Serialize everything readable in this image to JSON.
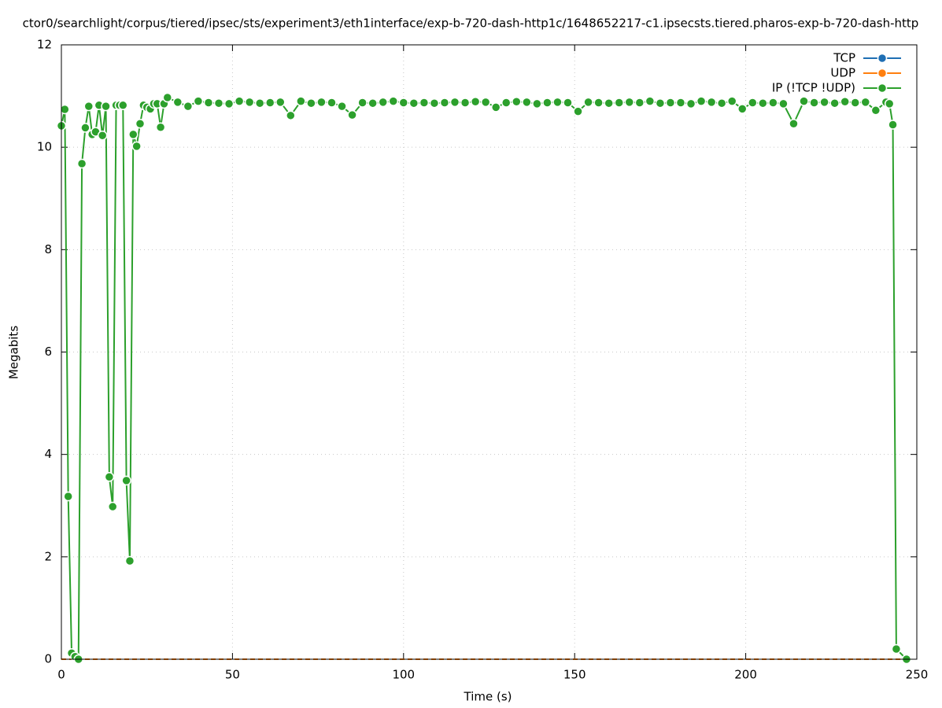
{
  "chart_data": {
    "type": "line",
    "title": "ctor0/searchlight/corpus/tiered/ipsec/sts/experiment3/eth1interface/exp-b-720-dash-http1c/1648652217-c1.ipsecsts.tiered.pharos-exp-b-720-dash-http",
    "x_label": "Time (s)",
    "y_label": "Megabits",
    "xlim": [
      0,
      250
    ],
    "xticks": [
      0,
      50,
      100,
      150,
      200,
      250
    ],
    "ylim": [
      0,
      12
    ],
    "yticks": [
      0,
      2,
      4,
      6,
      8,
      10,
      12
    ],
    "grid": true,
    "legend": "top-right",
    "x": [
      0,
      1,
      2,
      3,
      4,
      5,
      6,
      7,
      8,
      9,
      10,
      11,
      12,
      13,
      14,
      15,
      16,
      17,
      18,
      19,
      20,
      21,
      22,
      23,
      24,
      25,
      26,
      27,
      28,
      29,
      30,
      31,
      34,
      37,
      40,
      43,
      46,
      49,
      52,
      55,
      58,
      61,
      64,
      67,
      70,
      73,
      76,
      79,
      82,
      85,
      88,
      91,
      94,
      97,
      100,
      103,
      106,
      109,
      112,
      115,
      118,
      121,
      124,
      127,
      130,
      133,
      136,
      139,
      142,
      145,
      148,
      151,
      154,
      157,
      160,
      163,
      166,
      169,
      172,
      175,
      178,
      181,
      184,
      187,
      190,
      193,
      196,
      199,
      202,
      205,
      208,
      211,
      214,
      217,
      220,
      223,
      226,
      229,
      232,
      235,
      238,
      241,
      242,
      243,
      244,
      247
    ],
    "series": [
      {
        "name": "TCP",
        "color": "#1f6fb4",
        "markers": false,
        "values": [
          0,
          0,
          0,
          0,
          0,
          0,
          0,
          0,
          0,
          0,
          0,
          0,
          0,
          0,
          0,
          0,
          0,
          0,
          0,
          0,
          0,
          0,
          0,
          0,
          0,
          0,
          0,
          0,
          0,
          0,
          0,
          0,
          0,
          0,
          0,
          0,
          0,
          0,
          0,
          0,
          0,
          0,
          0,
          0,
          0,
          0,
          0,
          0,
          0,
          0,
          0,
          0,
          0,
          0,
          0,
          0,
          0,
          0,
          0,
          0,
          0,
          0,
          0,
          0,
          0,
          0,
          0,
          0,
          0,
          0,
          0,
          0,
          0,
          0,
          0,
          0,
          0,
          0,
          0,
          0,
          0,
          0,
          0,
          0,
          0,
          0,
          0,
          0,
          0,
          0,
          0,
          0,
          0,
          0,
          0,
          0,
          0,
          0,
          0,
          0,
          0,
          0,
          0,
          0,
          0,
          0
        ]
      },
      {
        "name": "UDP",
        "color": "#ff7f0e",
        "markers": false,
        "values": [
          0,
          0,
          0,
          0,
          0,
          0,
          0,
          0,
          0,
          0,
          0,
          0,
          0,
          0,
          0,
          0,
          0,
          0,
          0,
          0,
          0,
          0,
          0,
          0,
          0,
          0,
          0,
          0,
          0,
          0,
          0,
          0,
          0,
          0,
          0,
          0,
          0,
          0,
          0,
          0,
          0,
          0,
          0,
          0,
          0,
          0,
          0,
          0,
          0,
          0,
          0,
          0,
          0,
          0,
          0,
          0,
          0,
          0,
          0,
          0,
          0,
          0,
          0,
          0,
          0,
          0,
          0,
          0,
          0,
          0,
          0,
          0,
          0,
          0,
          0,
          0,
          0,
          0,
          0,
          0,
          0,
          0,
          0,
          0,
          0,
          0,
          0,
          0,
          0,
          0,
          0,
          0,
          0,
          0,
          0,
          0,
          0,
          0,
          0,
          0,
          0,
          0,
          0,
          0,
          0,
          0
        ]
      },
      {
        "name": "IP (!TCP  !UDP)",
        "color": "#2ca02c",
        "markers": true,
        "values": [
          10.42,
          10.74,
          3.18,
          0.12,
          0.05,
          0,
          9.68,
          10.38,
          10.8,
          10.25,
          10.3,
          10.82,
          10.23,
          10.8,
          3.56,
          2.98,
          10.82,
          10.82,
          10.82,
          3.49,
          1.92,
          10.25,
          10.02,
          10.46,
          10.82,
          10.78,
          10.75,
          10.85,
          10.85,
          10.39,
          10.85,
          10.97,
          10.88,
          10.8,
          10.9,
          10.87,
          10.86,
          10.85,
          10.9,
          10.88,
          10.86,
          10.87,
          10.88,
          10.62,
          10.9,
          10.86,
          10.88,
          10.87,
          10.8,
          10.63,
          10.87,
          10.86,
          10.88,
          10.9,
          10.87,
          10.86,
          10.87,
          10.86,
          10.87,
          10.88,
          10.87,
          10.89,
          10.88,
          10.78,
          10.87,
          10.89,
          10.88,
          10.85,
          10.87,
          10.88,
          10.87,
          10.7,
          10.88,
          10.87,
          10.86,
          10.87,
          10.88,
          10.87,
          10.9,
          10.86,
          10.87,
          10.87,
          10.85,
          10.9,
          10.88,
          10.86,
          10.9,
          10.75,
          10.87,
          10.86,
          10.87,
          10.85,
          10.46,
          10.9,
          10.87,
          10.88,
          10.86,
          10.89,
          10.87,
          10.88,
          10.72,
          10.88,
          10.85,
          10.44,
          0.2,
          0
        ]
      }
    ]
  }
}
